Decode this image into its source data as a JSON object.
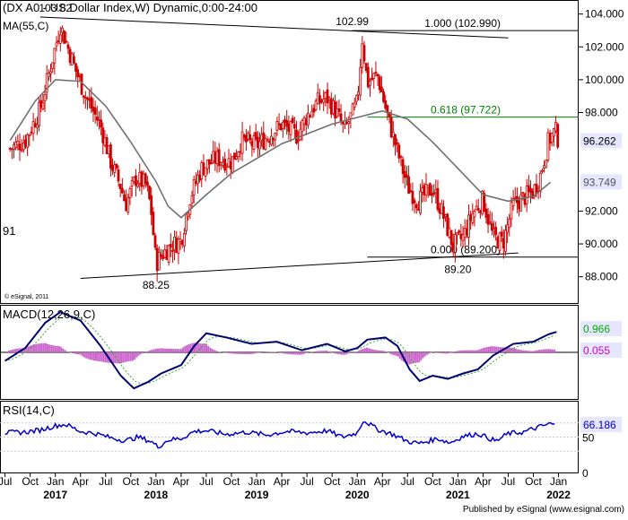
{
  "chart_data": [
    {
      "type": "candlestick",
      "title": "(DX A0 - US Dollar Index,W) Dynamic,0:00-24:00",
      "subtitle": "MA(55,C)",
      "ylim": [
        86.4,
        104.8
      ],
      "yticks": [
        "104.000",
        "102.000",
        "100.000",
        "98.000",
        "92.000",
        "90.000",
        "88.000"
      ],
      "last_price": "96.262",
      "ma_value": "93.749",
      "left_label": "91",
      "source": "© eSignal, 2011",
      "annotations": [
        {
          "text": "103.82",
          "x": 2017.0,
          "y": 103.82
        },
        {
          "text": "102.99",
          "x": 2019.95,
          "y": 102.99
        },
        {
          "text": "88.25",
          "x": 2018.0,
          "y": 88.25
        },
        {
          "text": "89.20",
          "x": 2021.0,
          "y": 89.2
        }
      ],
      "fib_levels": [
        {
          "label": "1.000 (102.990)",
          "value": 102.99,
          "x_start": 2019.95,
          "color": "#000000"
        },
        {
          "label": "0.618 (97.722)",
          "value": 97.722,
          "x_start": 2020.1,
          "color": "#008000"
        },
        {
          "label": "0.000 (89.200)",
          "value": 89.2,
          "x_start": 2020.1,
          "color": "#000000"
        }
      ],
      "trendlines": [
        {
          "from": [
            2016.85,
            103.82
          ],
          "to": [
            2021.5,
            102.55
          ]
        },
        {
          "from": [
            2017.25,
            87.9
          ],
          "to": [
            2021.6,
            89.45
          ]
        }
      ],
      "ma55_points": [
        [
          2016.55,
          96.3
        ],
        [
          2016.8,
          98.7
        ],
        [
          2017.0,
          100.0
        ],
        [
          2017.25,
          99.9
        ],
        [
          2017.5,
          98.4
        ],
        [
          2017.75,
          96.2
        ],
        [
          2018.0,
          93.8
        ],
        [
          2018.12,
          92.3
        ],
        [
          2018.25,
          91.6
        ],
        [
          2018.5,
          93.0
        ],
        [
          2018.75,
          94.3
        ],
        [
          2019.0,
          95.2
        ],
        [
          2019.25,
          96.1
        ],
        [
          2019.5,
          96.7
        ],
        [
          2019.75,
          97.3
        ],
        [
          2020.0,
          97.7
        ],
        [
          2020.25,
          98.1
        ],
        [
          2020.5,
          97.6
        ],
        [
          2020.75,
          96.2
        ],
        [
          2021.0,
          94.6
        ],
        [
          2021.25,
          93.0
        ],
        [
          2021.5,
          92.6
        ],
        [
          2021.75,
          92.9
        ],
        [
          2021.92,
          93.75
        ]
      ],
      "price_path": [
        [
          2016.55,
          95.8
        ],
        [
          2016.7,
          96.3
        ],
        [
          2016.85,
          98.2
        ],
        [
          2017.0,
          102.0
        ],
        [
          2017.05,
          103.3
        ],
        [
          2017.2,
          100.6
        ],
        [
          2017.3,
          99.0
        ],
        [
          2017.45,
          97.2
        ],
        [
          2017.55,
          95.0
        ],
        [
          2017.65,
          93.5
        ],
        [
          2017.7,
          92.4
        ],
        [
          2017.8,
          94.0
        ],
        [
          2017.9,
          93.6
        ],
        [
          2017.95,
          92.2
        ],
        [
          2018.0,
          88.8
        ],
        [
          2018.05,
          89.3
        ],
        [
          2018.15,
          89.9
        ],
        [
          2018.25,
          90.2
        ],
        [
          2018.33,
          92.7
        ],
        [
          2018.45,
          94.6
        ],
        [
          2018.6,
          95.2
        ],
        [
          2018.75,
          95.0
        ],
        [
          2018.85,
          96.3
        ],
        [
          2019.0,
          96.0
        ],
        [
          2019.1,
          96.5
        ],
        [
          2019.25,
          97.3
        ],
        [
          2019.4,
          96.6
        ],
        [
          2019.5,
          97.8
        ],
        [
          2019.6,
          98.6
        ],
        [
          2019.7,
          98.9
        ],
        [
          2019.8,
          97.9
        ],
        [
          2019.87,
          96.9
        ],
        [
          2019.95,
          97.9
        ],
        [
          2020.0,
          98.6
        ],
        [
          2020.05,
          102.5
        ],
        [
          2020.1,
          99.8
        ],
        [
          2020.2,
          100.3
        ],
        [
          2020.3,
          97.8
        ],
        [
          2020.4,
          95.6
        ],
        [
          2020.5,
          93.5
        ],
        [
          2020.6,
          92.6
        ],
        [
          2020.75,
          93.4
        ],
        [
          2020.85,
          91.8
        ],
        [
          2020.95,
          89.9
        ],
        [
          2021.05,
          90.4
        ],
        [
          2021.15,
          91.9
        ],
        [
          2021.25,
          92.7
        ],
        [
          2021.35,
          90.4
        ],
        [
          2021.45,
          90.1
        ],
        [
          2021.55,
          92.4
        ],
        [
          2021.65,
          92.8
        ],
        [
          2021.75,
          93.2
        ],
        [
          2021.82,
          94.2
        ],
        [
          2021.9,
          96.3
        ],
        [
          2021.97,
          96.9
        ],
        [
          2022.0,
          96.262
        ]
      ]
    },
    {
      "type": "line",
      "title": "MACD(12,26,9,C)",
      "values_labels": [
        "0.966",
        "0.055"
      ],
      "values_colors": [
        "#00b000",
        "#d000d0"
      ],
      "macd_points": [
        [
          2016.5,
          -0.4
        ],
        [
          2016.7,
          0.2
        ],
        [
          2016.9,
          1.4
        ],
        [
          2017.05,
          1.9
        ],
        [
          2017.25,
          1.5
        ],
        [
          2017.45,
          0.3
        ],
        [
          2017.65,
          -1.1
        ],
        [
          2017.78,
          -1.7
        ],
        [
          2017.92,
          -1.4
        ],
        [
          2018.05,
          -1.0
        ],
        [
          2018.25,
          -0.6
        ],
        [
          2018.38,
          0.3
        ],
        [
          2018.5,
          0.9
        ],
        [
          2018.7,
          0.7
        ],
        [
          2018.95,
          0.4
        ],
        [
          2019.2,
          0.5
        ],
        [
          2019.45,
          0.1
        ],
        [
          2019.7,
          0.4
        ],
        [
          2019.88,
          0.05
        ],
        [
          2020.0,
          0.2
        ],
        [
          2020.1,
          0.6
        ],
        [
          2020.28,
          0.7
        ],
        [
          2020.4,
          0.3
        ],
        [
          2020.52,
          -0.8
        ],
        [
          2020.62,
          -1.35
        ],
        [
          2020.75,
          -1.1
        ],
        [
          2020.9,
          -1.25
        ],
        [
          2021.05,
          -1.0
        ],
        [
          2021.2,
          -0.8
        ],
        [
          2021.35,
          -0.15
        ],
        [
          2021.55,
          0.4
        ],
        [
          2021.75,
          0.5
        ],
        [
          2021.9,
          0.85
        ],
        [
          2021.98,
          0.966
        ]
      ],
      "ylim": [
        -2.2,
        2.2
      ]
    },
    {
      "type": "line",
      "title": "RSI(14,C)",
      "value_label": "66.186",
      "yticks": [
        "50",
        "0"
      ],
      "ylim": [
        0,
        100
      ],
      "rsi_points": [
        [
          2016.5,
          56
        ],
        [
          2016.7,
          57
        ],
        [
          2016.85,
          60
        ],
        [
          2017.0,
          66
        ],
        [
          2017.1,
          68
        ],
        [
          2017.25,
          58
        ],
        [
          2017.4,
          55
        ],
        [
          2017.55,
          49
        ],
        [
          2017.7,
          45
        ],
        [
          2017.82,
          50
        ],
        [
          2017.95,
          44
        ],
        [
          2018.02,
          36
        ],
        [
          2018.12,
          46
        ],
        [
          2018.25,
          48
        ],
        [
          2018.38,
          58
        ],
        [
          2018.5,
          59
        ],
        [
          2018.7,
          54
        ],
        [
          2018.9,
          57
        ],
        [
          2019.1,
          53
        ],
        [
          2019.3,
          58
        ],
        [
          2019.5,
          56
        ],
        [
          2019.7,
          59
        ],
        [
          2019.85,
          50
        ],
        [
          2020.0,
          56
        ],
        [
          2020.06,
          74
        ],
        [
          2020.2,
          61
        ],
        [
          2020.35,
          54
        ],
        [
          2020.5,
          44
        ],
        [
          2020.62,
          41
        ],
        [
          2020.8,
          48
        ],
        [
          2020.92,
          42
        ],
        [
          2021.05,
          51
        ],
        [
          2021.2,
          55
        ],
        [
          2021.38,
          44
        ],
        [
          2021.5,
          55
        ],
        [
          2021.65,
          57
        ],
        [
          2021.8,
          64
        ],
        [
          2021.92,
          69
        ],
        [
          2021.98,
          66.186
        ]
      ]
    }
  ],
  "x_axis": {
    "xlim": [
      2016.45,
      2022.2
    ],
    "months": [
      {
        "label": "Jul",
        "x": 2016.5
      },
      {
        "label": "Oct",
        "x": 2016.75
      },
      {
        "label": "Jan",
        "x": 2017.0
      },
      {
        "label": "Apr",
        "x": 2017.25
      },
      {
        "label": "Jul",
        "x": 2017.5
      },
      {
        "label": "Oct",
        "x": 2017.75
      },
      {
        "label": "Jan",
        "x": 2018.0
      },
      {
        "label": "Apr",
        "x": 2018.25
      },
      {
        "label": "Jul",
        "x": 2018.5
      },
      {
        "label": "Oct",
        "x": 2018.75
      },
      {
        "label": "Jan",
        "x": 2019.0
      },
      {
        "label": "Apr",
        "x": 2019.25
      },
      {
        "label": "Jul",
        "x": 2019.5
      },
      {
        "label": "Oct",
        "x": 2019.75
      },
      {
        "label": "Jan",
        "x": 2020.0
      },
      {
        "label": "Apr",
        "x": 2020.25
      },
      {
        "label": "Jul",
        "x": 2020.5
      },
      {
        "label": "Oct",
        "x": 2020.75
      },
      {
        "label": "Jan",
        "x": 2021.0
      },
      {
        "label": "Apr",
        "x": 2021.25
      },
      {
        "label": "Jul",
        "x": 2021.5
      },
      {
        "label": "Oct",
        "x": 2021.75
      },
      {
        "label": "Jan",
        "x": 2022.0
      }
    ],
    "years": [
      {
        "label": "2017",
        "x": 2017.0
      },
      {
        "label": "2018",
        "x": 2018.0
      },
      {
        "label": "2019",
        "x": 2019.0
      },
      {
        "label": "2020",
        "x": 2020.0
      },
      {
        "label": "2021",
        "x": 2021.0
      },
      {
        "label": "2022",
        "x": 2022.0
      }
    ]
  },
  "footer": "Published by eSignal (www.esignal.com)",
  "colors": {
    "candle": "#cc0000",
    "ma": "#707070",
    "fib_green": "#008000",
    "macd": "#000070",
    "signal": "#33aa33",
    "histogram": "#cc66cc",
    "rsi": "#0000cc",
    "label_bg": "#e6e6ff"
  }
}
